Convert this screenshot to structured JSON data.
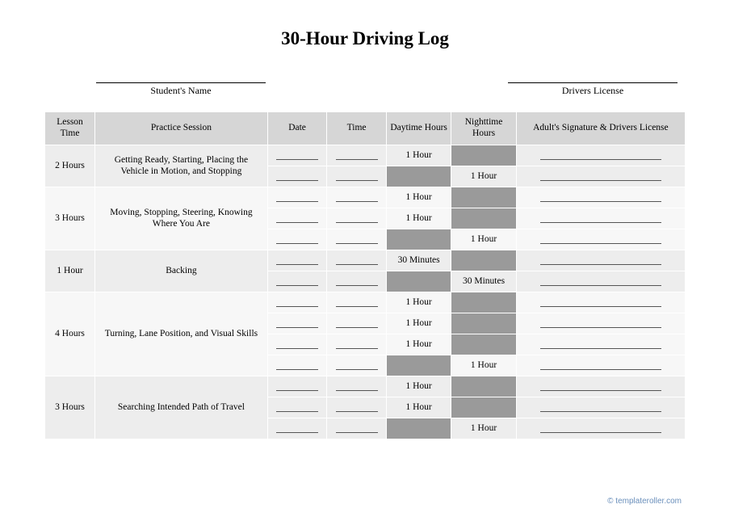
{
  "title": "30-Hour Driving Log",
  "fields": {
    "student_label": "Student's Name",
    "license_label": "Drivers License"
  },
  "columns": {
    "lesson_time": "Lesson Time",
    "practice_session": "Practice Session",
    "date": "Date",
    "time": "Time",
    "daytime": "Daytime Hours",
    "nighttime": "Nighttime Hours",
    "signature": "Adult's Signature & Drivers License"
  },
  "col_widths": {
    "lesson_time": 54,
    "practice_session": 186,
    "date": 64,
    "time": 64,
    "daytime": 70,
    "nighttime": 70,
    "signature": 182
  },
  "sections": [
    {
      "bg": "a",
      "lesson_time": "2 Hours",
      "session": "Getting Ready, Starting, Placing the Vehicle in Motion, and Stopping",
      "rows": [
        {
          "daytime": "1 Hour",
          "nighttime": null
        },
        {
          "daytime": null,
          "nighttime": "1 Hour"
        }
      ]
    },
    {
      "bg": "b",
      "lesson_time": "3 Hours",
      "session": "Moving, Stopping, Steering, Knowing Where You Are",
      "rows": [
        {
          "daytime": "1 Hour",
          "nighttime": null
        },
        {
          "daytime": "1 Hour",
          "nighttime": null
        },
        {
          "daytime": null,
          "nighttime": "1 Hour"
        }
      ]
    },
    {
      "bg": "a",
      "lesson_time": "1 Hour",
      "session": "Backing",
      "rows": [
        {
          "daytime": "30 Minutes",
          "nighttime": null
        },
        {
          "daytime": null,
          "nighttime": "30 Minutes"
        }
      ]
    },
    {
      "bg": "b",
      "lesson_time": "4 Hours",
      "session": "Turning, Lane Position, and Visual Skills",
      "rows": [
        {
          "daytime": "1 Hour",
          "nighttime": null
        },
        {
          "daytime": "1 Hour",
          "nighttime": null
        },
        {
          "daytime": "1 Hour",
          "nighttime": null
        },
        {
          "daytime": null,
          "nighttime": "1 Hour"
        }
      ]
    },
    {
      "bg": "a",
      "lesson_time": "3 Hours",
      "session": "Searching Intended Path of Travel",
      "rows": [
        {
          "daytime": "1 Hour",
          "nighttime": null
        },
        {
          "daytime": "1 Hour",
          "nighttime": null
        },
        {
          "daytime": null,
          "nighttime": "1 Hour"
        }
      ]
    }
  ],
  "footer": "© templateroller.com",
  "colors": {
    "header_bg": "#d6d6d6",
    "row_a": "#ededed",
    "row_b": "#f7f7f7",
    "shade": "#9a9a9a",
    "footer_link": "#6a8fbb"
  }
}
